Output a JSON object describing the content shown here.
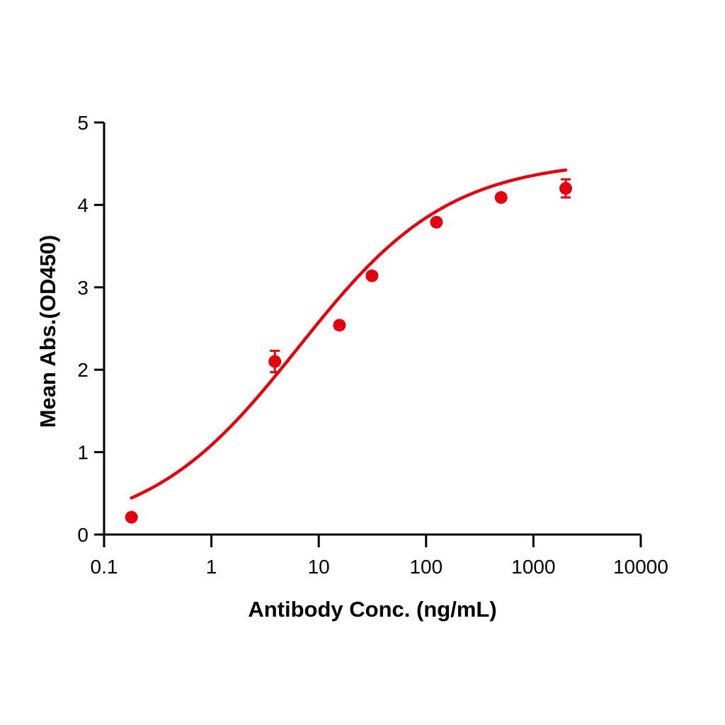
{
  "chart_data": {
    "type": "scatter",
    "title": "",
    "xlabel": "Antibody Conc. (ng/mL)",
    "ylabel": "Mean Abs.(OD450)",
    "xscale": "log",
    "xlim": [
      0.1,
      10000
    ],
    "ylim": [
      0,
      5
    ],
    "x_ticks": [
      "0.1",
      "1",
      "10",
      "100",
      "1000",
      "10000"
    ],
    "y_ticks": [
      "0",
      "1",
      "2",
      "3",
      "4",
      "5"
    ],
    "grid": false,
    "legend": null,
    "color": "#e3000f",
    "series": [
      {
        "name": "Mean Abs.(OD450)",
        "x": [
          0.18,
          3.9,
          15.6,
          31.3,
          125,
          500,
          2000
        ],
        "y": [
          0.21,
          2.1,
          2.54,
          3.14,
          3.79,
          4.09,
          4.2
        ],
        "error": [
          0.02,
          0.13,
          0.02,
          0.02,
          0.02,
          0.02,
          0.11
        ]
      }
    ],
    "fit": {
      "type": "4PL",
      "bottom": 0.0,
      "top": 4.55,
      "ec50": 6.5,
      "hill": 0.62,
      "description": "Fitted sigmoidal curve through points"
    }
  }
}
